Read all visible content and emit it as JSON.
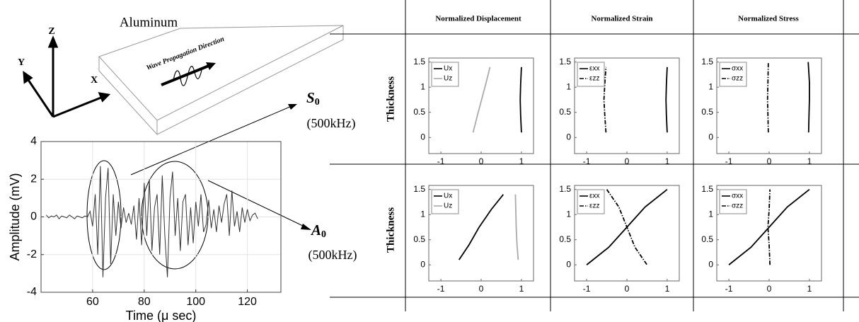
{
  "figure": {
    "material": "Aluminum",
    "axes": [
      "Z",
      "Y",
      "X"
    ],
    "wave_label": "Wave Propagation Direction",
    "modes": [
      {
        "symbol": "S",
        "sub": "0",
        "freq": "(500kHz)"
      },
      {
        "symbol": "A",
        "sub": "0",
        "freq": "(500kHz)"
      }
    ]
  },
  "table": {
    "columns": [
      "Normalized Displacement",
      "Normalized Strain",
      "Normalized Stress"
    ],
    "row_labels": [
      "Thickness",
      "Thickness"
    ]
  },
  "chart_data": [
    {
      "type": "line",
      "xlabel": "Time (μ sec)",
      "ylabel": "Amplitude (mV)",
      "color": "#333333",
      "grid": true,
      "xlim": [
        40,
        133
      ],
      "ylim": [
        -4,
        4
      ],
      "xticks": [
        60,
        80,
        100,
        120
      ],
      "yticks": [
        -4,
        -2,
        0,
        2,
        4
      ],
      "x": [
        42,
        43,
        44,
        45,
        46,
        47,
        48,
        49,
        50,
        51,
        52,
        53,
        54,
        55,
        56,
        57,
        58,
        59,
        60,
        61,
        62,
        63,
        64,
        65,
        66,
        67,
        68,
        69,
        70,
        71,
        72,
        73,
        74,
        75,
        76,
        77,
        78,
        79,
        80,
        81,
        82,
        83,
        84,
        85,
        86,
        87,
        88,
        89,
        90,
        91,
        92,
        93,
        94,
        95,
        96,
        97,
        98,
        99,
        100,
        101,
        102,
        103,
        104,
        105,
        106,
        107,
        108,
        109,
        110,
        111,
        112,
        113,
        114,
        115,
        116,
        117,
        118,
        119,
        120,
        121,
        122,
        123,
        124
      ],
      "values": [
        0.1,
        -0.05,
        0.05,
        0,
        0.1,
        -0.1,
        0.05,
        0,
        -0.05,
        0.1,
        0,
        -0.1,
        0.05,
        0,
        -0.05,
        0.05,
        0,
        0.3,
        -0.5,
        1.2,
        -2.0,
        2.7,
        -3.2,
        1.0,
        2.6,
        -2.5,
        1.2,
        -1.0,
        0.8,
        -0.6,
        0.5,
        -0.3,
        0.2,
        -0.4,
        0.6,
        -1.2,
        1.0,
        -1.5,
        1.8,
        -1.0,
        2.0,
        -1.8,
        0.5,
        1.2,
        -2.0,
        2.2,
        -1.0,
        -3.2,
        1.0,
        2.4,
        -1.0,
        1.0,
        -1.8,
        0.8,
        1.2,
        -1.5,
        0.5,
        -1.4,
        0.8,
        -0.5,
        1.2,
        -0.8,
        -0.4,
        0.9,
        -0.6,
        0.4,
        -0.8,
        0.6,
        -0.3,
        0.7,
        1.2,
        -1.0,
        1.4,
        -0.5,
        0.3,
        -0.8,
        0.5,
        -0.3,
        0.4,
        -0.2,
        0.1,
        0.2,
        -0.1
      ]
    },
    {
      "type": "profile",
      "xlim": [
        -1.3,
        1.3
      ],
      "ylim": [
        -0.32,
        1.58
      ],
      "xticks": [
        -1,
        0,
        1
      ],
      "yticks": [
        0,
        0.5,
        1,
        1.5
      ],
      "series": [
        {
          "name": "Ux",
          "color": "#000000",
          "linestyle": "solid",
          "x": [
            1.0,
            0.98,
            0.97,
            0.98,
            1.0
          ],
          "values": [
            0.1,
            0.45,
            0.75,
            1.05,
            1.4
          ]
        },
        {
          "name": "Uz",
          "color": "#aaaaaa",
          "linestyle": "solid",
          "x": [
            -0.2,
            -0.09,
            0.01,
            0.11,
            0.22
          ],
          "values": [
            0.1,
            0.45,
            0.75,
            1.05,
            1.4
          ]
        }
      ]
    },
    {
      "type": "profile",
      "xlim": [
        -1.3,
        1.3
      ],
      "ylim": [
        -0.32,
        1.58
      ],
      "xticks": [
        -1,
        0,
        1
      ],
      "yticks": [
        0,
        0.5,
        1,
        1.5
      ],
      "series": [
        {
          "name": "εxx",
          "color": "#000000",
          "linestyle": "solid",
          "x": [
            1.0,
            0.98,
            0.97,
            0.98,
            1.0
          ],
          "values": [
            0.1,
            0.45,
            0.75,
            1.05,
            1.4
          ]
        },
        {
          "name": "εzz",
          "color": "#000000",
          "linestyle": "dashdot",
          "x": [
            -0.52,
            -0.55,
            -0.57,
            -0.55,
            -0.52
          ],
          "values": [
            0.1,
            0.45,
            0.75,
            1.05,
            1.4
          ]
        }
      ]
    },
    {
      "type": "profile",
      "xlim": [
        -1.3,
        1.3
      ],
      "ylim": [
        -0.32,
        1.58
      ],
      "xticks": [
        -1,
        0,
        1
      ],
      "yticks": [
        0,
        0.5,
        1,
        1.5
      ],
      "series": [
        {
          "name": "σxx",
          "color": "#000000",
          "linestyle": "solid",
          "x": [
            0.98,
            0.99,
            1.0,
            1.0,
            0.97
          ],
          "values": [
            0.1,
            0.45,
            0.75,
            1.1,
            1.5
          ]
        },
        {
          "name": "σzz",
          "color": "#000000",
          "linestyle": "dashdot",
          "x": [
            -0.02,
            -0.03,
            -0.04,
            -0.03,
            -0.02
          ],
          "values": [
            0.1,
            0.45,
            0.75,
            1.1,
            1.5
          ]
        }
      ]
    },
    {
      "type": "profile",
      "xlim": [
        -1.3,
        1.3
      ],
      "ylim": [
        -0.32,
        1.58
      ],
      "xticks": [
        -1,
        0,
        1
      ],
      "yticks": [
        0,
        0.5,
        1,
        1.5
      ],
      "series": [
        {
          "name": "Ux",
          "color": "#000000",
          "linestyle": "solid",
          "x": [
            -0.55,
            -0.3,
            -0.05,
            0.25,
            0.55
          ],
          "values": [
            0.1,
            0.4,
            0.75,
            1.1,
            1.4
          ]
        },
        {
          "name": "Uz",
          "color": "#aaaaaa",
          "linestyle": "solid",
          "x": [
            0.92,
            0.89,
            0.87,
            0.86,
            0.85
          ],
          "values": [
            0.1,
            0.4,
            0.75,
            1.1,
            1.4
          ]
        }
      ]
    },
    {
      "type": "profile",
      "xlim": [
        -1.3,
        1.3
      ],
      "ylim": [
        -0.32,
        1.58
      ],
      "xticks": [
        -1,
        0,
        1
      ],
      "yticks": [
        0,
        0.5,
        1,
        1.5
      ],
      "series": [
        {
          "name": "εxx",
          "color": "#000000",
          "linestyle": "solid",
          "x": [
            -1,
            -0.45,
            0,
            0.45,
            1
          ],
          "values": [
            0,
            0.35,
            0.75,
            1.15,
            1.5
          ]
        },
        {
          "name": "εzz",
          "color": "#000000",
          "linestyle": "dashdot",
          "x": [
            -0.5,
            -0.2,
            0,
            0.2,
            0.5
          ],
          "values": [
            1.5,
            1.15,
            0.75,
            0.35,
            0
          ]
        }
      ]
    },
    {
      "type": "profile",
      "xlim": [
        -1.3,
        1.3
      ],
      "ylim": [
        -0.32,
        1.58
      ],
      "xticks": [
        -1,
        0,
        1
      ],
      "yticks": [
        0,
        0.5,
        1,
        1.5
      ],
      "series": [
        {
          "name": "σxx",
          "color": "#000000",
          "linestyle": "solid",
          "x": [
            -1,
            -0.45,
            0,
            0.45,
            1
          ],
          "values": [
            0,
            0.35,
            0.75,
            1.15,
            1.5
          ]
        },
        {
          "name": "σzz",
          "color": "#000000",
          "linestyle": "dashdot",
          "x": [
            0.02,
            0.0,
            -0.03,
            0.0,
            0.02
          ],
          "values": [
            0,
            0.4,
            0.75,
            1.1,
            1.5
          ]
        }
      ]
    }
  ]
}
